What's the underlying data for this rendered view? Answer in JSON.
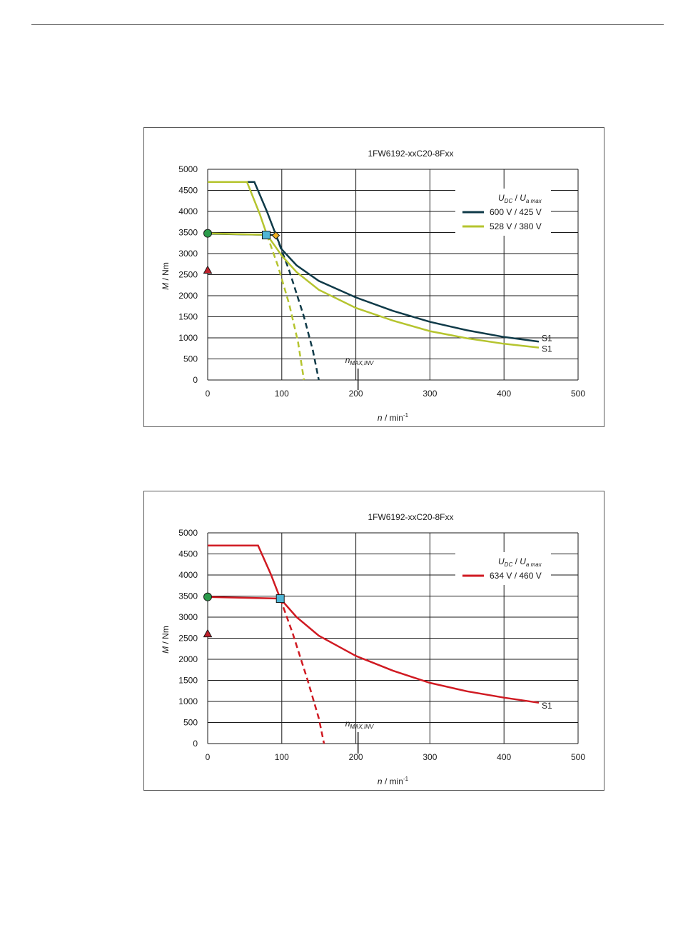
{
  "chart_data": [
    {
      "type": "line",
      "title": "1FW6192-xxC20-8Fxx",
      "xlabel_var": "n",
      "xlabel_unit": " / min",
      "xlabel_exp": "-1",
      "ylabel_var": "M",
      "ylabel_unit": " / Nm",
      "xlim": [
        0,
        500
      ],
      "ylim": [
        0,
        5000
      ],
      "xticks": [
        "0",
        "100",
        "200",
        "300",
        "400",
        "500"
      ],
      "yticks": [
        "0",
        "500",
        "1000",
        "1500",
        "2000",
        "2500",
        "3000",
        "3500",
        "4000",
        "4500",
        "5000"
      ],
      "grid": true,
      "legend_position": "top-right",
      "legend_header_u": "U",
      "legend_header_sub1": "DC",
      "legend_header_sep": " / ",
      "legend_header_sub2": "a max",
      "nmax_var": "n",
      "nmax_sub": "MAX,INV",
      "nmax_x": 203,
      "markers": [
        {
          "kind": "circle",
          "color": "#2a9a4a",
          "x": 0,
          "y": 3480
        },
        {
          "kind": "triangle",
          "color": "#c0202a",
          "x": 0,
          "y": 2600
        },
        {
          "kind": "square",
          "color": "#4fb6d6",
          "x": 79,
          "y": 3440
        },
        {
          "kind": "diamond",
          "color": "#f0b020",
          "x": 92,
          "y": 3430
        }
      ],
      "series": [
        {
          "name": "600 V / 425 V",
          "color": "#0f3a48",
          "end_label": "S1",
          "peak": [
            [
              0,
              4700
            ],
            [
              63,
              4700
            ],
            [
              80,
              4000
            ],
            [
              92,
              3450
            ]
          ],
          "s1": [
            [
              0,
              3470
            ],
            [
              80,
              3445
            ],
            [
              92,
              3440
            ],
            [
              100,
              3100
            ],
            [
              120,
              2720
            ],
            [
              150,
              2350
            ],
            [
              200,
              1960
            ],
            [
              250,
              1640
            ],
            [
              300,
              1380
            ],
            [
              350,
              1180
            ],
            [
              400,
              1020
            ],
            [
              447,
              910
            ]
          ],
          "dashed": [
            [
              92,
              3440
            ],
            [
              110,
              2600
            ],
            [
              130,
              1500
            ],
            [
              142,
              700
            ],
            [
              150,
              0
            ]
          ]
        },
        {
          "name": "528 V / 380 V",
          "color": "#b5c42e",
          "end_label": "S1",
          "peak": [
            [
              0,
              4700
            ],
            [
              53,
              4700
            ],
            [
              70,
              3950
            ],
            [
              80,
              3445
            ]
          ],
          "s1": [
            [
              0,
              3480
            ],
            [
              80,
              3445
            ],
            [
              90,
              3200
            ],
            [
              100,
              2950
            ],
            [
              120,
              2560
            ],
            [
              150,
              2140
            ],
            [
              200,
              1710
            ],
            [
              250,
              1410
            ],
            [
              300,
              1160
            ],
            [
              350,
              990
            ],
            [
              400,
              860
            ],
            [
              447,
              770
            ]
          ],
          "dashed": [
            [
              80,
              3445
            ],
            [
              95,
              2700
            ],
            [
              110,
              1800
            ],
            [
              122,
              900
            ],
            [
              130,
              0
            ]
          ]
        }
      ]
    },
    {
      "type": "line",
      "title": "1FW6192-xxC20-8Fxx",
      "xlabel_var": "n",
      "xlabel_unit": " / min",
      "xlabel_exp": "-1",
      "ylabel_var": "M",
      "ylabel_unit": " / Nm",
      "xlim": [
        0,
        500
      ],
      "ylim": [
        0,
        5000
      ],
      "xticks": [
        "0",
        "100",
        "200",
        "300",
        "400",
        "500"
      ],
      "yticks": [
        "0",
        "500",
        "1000",
        "1500",
        "2000",
        "2500",
        "3000",
        "3500",
        "4000",
        "4500",
        "5000"
      ],
      "grid": true,
      "legend_position": "top-right",
      "legend_header_u": "U",
      "legend_header_sub1": "DC",
      "legend_header_sep": " / ",
      "legend_header_sub2": "a max",
      "nmax_var": "n",
      "nmax_sub": "MAX,INV",
      "nmax_x": 203,
      "markers": [
        {
          "kind": "circle",
          "color": "#2a9a4a",
          "x": 0,
          "y": 3480
        },
        {
          "kind": "triangle",
          "color": "#c0202a",
          "x": 0,
          "y": 2600
        },
        {
          "kind": "square",
          "color": "#4fb6d6",
          "x": 98,
          "y": 3440
        }
      ],
      "series": [
        {
          "name": "634 V / 460 V",
          "color": "#d01a22",
          "end_label": "S1",
          "peak": [
            [
              0,
              4700
            ],
            [
              68,
              4700
            ],
            [
              85,
              4030
            ],
            [
              98,
              3440
            ]
          ],
          "s1": [
            [
              0,
              3480
            ],
            [
              98,
              3440
            ],
            [
              120,
              3000
            ],
            [
              150,
              2560
            ],
            [
              200,
              2080
            ],
            [
              250,
              1730
            ],
            [
              300,
              1440
            ],
            [
              350,
              1240
            ],
            [
              400,
              1090
            ],
            [
              447,
              970
            ]
          ],
          "dashed": [
            [
              98,
              3440
            ],
            [
              115,
              2600
            ],
            [
              135,
              1500
            ],
            [
              150,
              600
            ],
            [
              157,
              0
            ]
          ]
        }
      ]
    }
  ]
}
